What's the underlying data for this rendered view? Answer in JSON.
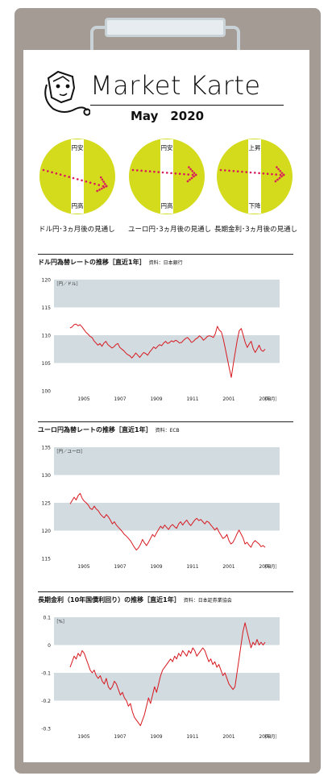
{
  "header": {
    "title": "Market Karte",
    "subtitle": "May　2020"
  },
  "outlook": [
    {
      "top_label": "円安",
      "bottom_label": "円高",
      "caption": "ドル円･3ヵ月後の見通し"
    },
    {
      "top_label": "円安",
      "bottom_label": "円高",
      "caption": "ユーロ円･3ヵ月後の見通し"
    },
    {
      "top_label": "上昇",
      "bottom_label": "下降",
      "caption": "長期金利･3ヵ月後の見通し"
    }
  ],
  "colors": {
    "circle": "#d4db1c",
    "arrow": "#d91a5c",
    "band": "#d2dbe0",
    "line": "#d71920",
    "board": "#a39b94"
  },
  "chart_data": [
    {
      "type": "line",
      "title": "ドル円為替レートの推移［直近1年］",
      "source": "資料：日本銀行",
      "unit_label": "［円／ドル］",
      "xlabel_end": "［年月］",
      "xticks": [
        "1905",
        "1907",
        "1909",
        "1911",
        "2001",
        "2003"
      ],
      "yticks": [
        120,
        115,
        110,
        105,
        100
      ],
      "ylim": [
        100,
        120
      ],
      "bands": [
        [
          115,
          120
        ],
        [
          105,
          110
        ]
      ],
      "x_range": [
        "2019-04",
        "2020-04"
      ],
      "series": [
        {
          "values": [
            111.3,
            111.5,
            111.9,
            112.0,
            111.7,
            111.9,
            111.5,
            111.0,
            110.5,
            110.2,
            109.8,
            109.6,
            109.0,
            108.6,
            108.2,
            108.5,
            108.0,
            108.6,
            108.9,
            108.3,
            108.0,
            107.7,
            107.9,
            108.3,
            108.5,
            107.8,
            107.5,
            107.2,
            106.8,
            106.5,
            106.3,
            105.9,
            106.3,
            106.8,
            106.4,
            106.0,
            106.5,
            106.9,
            106.7,
            106.4,
            107.0,
            107.4,
            107.9,
            107.6,
            108.0,
            108.3,
            108.1,
            108.6,
            108.9,
            108.5,
            108.7,
            109.0,
            108.8,
            109.1,
            108.9,
            108.6,
            108.7,
            109.1,
            109.4,
            109.6,
            109.2,
            108.7,
            108.9,
            109.3,
            109.5,
            109.9,
            109.6,
            109.1,
            109.4,
            109.8,
            109.9,
            109.8,
            109.6,
            110.3,
            111.6,
            110.9,
            110.6,
            109.3,
            107.6,
            105.8,
            104.0,
            102.4,
            104.8,
            107.0,
            109.1,
            110.8,
            111.2,
            110.0,
            108.7,
            107.8,
            108.4,
            108.9,
            107.6,
            106.9,
            107.5,
            108.2,
            107.3,
            107.1,
            107.5
          ]
        }
      ]
    },
    {
      "type": "line",
      "title": "ユーロ円為替レートの推移［直近1年］",
      "source": "資料：ECB",
      "unit_label": "［円／ユーロ］",
      "xlabel_end": "［年月］",
      "xticks": [
        "1905",
        "1907",
        "1909",
        "1911",
        "2001",
        "2003"
      ],
      "yticks": [
        135,
        130,
        125,
        120,
        115
      ],
      "ylim": [
        115,
        135
      ],
      "bands": [
        [
          130,
          135
        ],
        [
          120,
          125
        ]
      ],
      "x_range": [
        "2019-04",
        "2020-04"
      ],
      "series": [
        {
          "values": [
            124.8,
            125.4,
            126.0,
            125.5,
            126.3,
            126.7,
            125.8,
            125.3,
            125.0,
            124.6,
            124.0,
            123.8,
            124.4,
            123.9,
            123.6,
            123.0,
            122.6,
            122.3,
            122.9,
            122.5,
            121.9,
            121.2,
            121.6,
            121.0,
            120.6,
            120.2,
            119.8,
            119.3,
            119.0,
            118.6,
            118.2,
            117.6,
            117.0,
            116.5,
            116.9,
            117.5,
            118.4,
            117.8,
            117.3,
            117.9,
            118.6,
            119.3,
            118.9,
            119.6,
            120.2,
            120.8,
            120.4,
            121.0,
            120.6,
            120.2,
            120.8,
            121.1,
            120.7,
            120.4,
            121.2,
            121.6,
            121.0,
            121.5,
            121.9,
            121.3,
            120.9,
            121.4,
            121.9,
            122.2,
            121.8,
            122.0,
            121.6,
            121.2,
            121.7,
            121.5,
            121.0,
            120.6,
            120.1,
            120.5,
            119.8,
            119.2,
            118.6,
            118.8,
            119.3,
            118.2,
            117.6,
            117.9,
            118.6,
            119.4,
            120.1,
            119.4,
            118.7,
            117.6,
            117.9,
            117.4,
            117.0,
            117.8,
            118.2,
            117.9,
            117.6,
            117.1,
            117.3,
            117.0
          ]
        }
      ]
    },
    {
      "type": "line",
      "title": "長期金利（10年国債利回り）の推移［直近1年］",
      "source": "資料：日本証券業協会",
      "unit_label": "［%］",
      "xlabel_end": "［年月］",
      "xticks": [
        "1905",
        "1907",
        "1909",
        "1911",
        "2001",
        "2003"
      ],
      "yticks": [
        0.1,
        0,
        -0.1,
        -0.2,
        -0.3
      ],
      "ytick_labels": [
        "0.1",
        "0",
        "-0.1",
        "-0.2",
        "-0.3"
      ],
      "ylim": [
        -0.3,
        0.1
      ],
      "bands": [
        [
          0.0,
          0.1
        ],
        [
          -0.2,
          -0.1
        ]
      ],
      "x_range": [
        "2019-04",
        "2020-04"
      ],
      "series": [
        {
          "values": [
            -0.08,
            -0.06,
            -0.04,
            -0.05,
            -0.03,
            -0.04,
            -0.02,
            -0.03,
            -0.05,
            -0.07,
            -0.09,
            -0.1,
            -0.09,
            -0.11,
            -0.12,
            -0.11,
            -0.13,
            -0.14,
            -0.12,
            -0.15,
            -0.16,
            -0.15,
            -0.13,
            -0.14,
            -0.16,
            -0.18,
            -0.17,
            -0.19,
            -0.2,
            -0.22,
            -0.21,
            -0.24,
            -0.26,
            -0.27,
            -0.28,
            -0.29,
            -0.27,
            -0.25,
            -0.22,
            -0.19,
            -0.21,
            -0.18,
            -0.15,
            -0.17,
            -0.14,
            -0.11,
            -0.09,
            -0.08,
            -0.07,
            -0.06,
            -0.05,
            -0.06,
            -0.04,
            -0.05,
            -0.03,
            -0.04,
            -0.02,
            -0.03,
            -0.04,
            -0.02,
            -0.03,
            -0.01,
            -0.02,
            -0.04,
            -0.03,
            -0.02,
            -0.01,
            -0.02,
            -0.04,
            -0.06,
            -0.05,
            -0.07,
            -0.06,
            -0.08,
            -0.07,
            -0.09,
            -0.11,
            -0.1,
            -0.12,
            -0.14,
            -0.15,
            -0.16,
            -0.15,
            -0.1,
            -0.05,
            0.0,
            0.05,
            0.08,
            0.05,
            0.02,
            -0.01,
            0.01,
            0.0,
            0.02,
            0.0,
            0.01,
            0.0,
            0.01
          ]
        }
      ]
    }
  ]
}
